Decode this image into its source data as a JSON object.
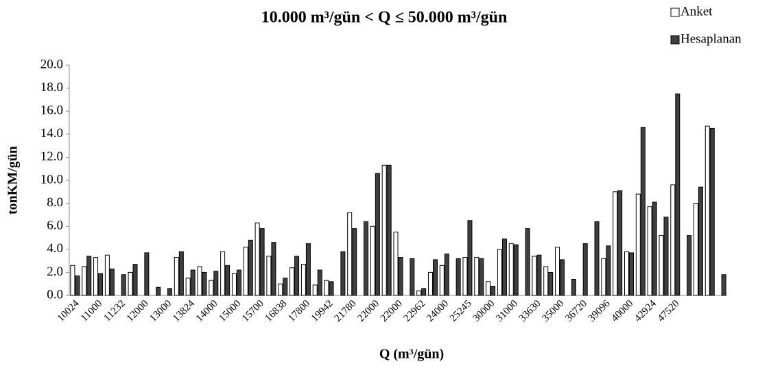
{
  "chart_data": {
    "type": "bar",
    "title": "10.000 m³/gün < Q ≤  50.000 m³/gün",
    "x_label": "Q (m³/gün)",
    "y_label": "tonKM/gün",
    "categories": [
      "10024",
      null,
      "11000",
      null,
      "11232",
      null,
      "12000",
      null,
      "13000",
      null,
      "13824",
      null,
      "14000",
      null,
      "15000",
      null,
      "15700",
      null,
      "16838",
      null,
      "17800",
      null,
      "19942",
      null,
      "21780",
      null,
      "22000",
      null,
      "22000",
      null,
      "22962",
      null,
      "24000",
      null,
      "25245",
      null,
      "30000",
      null,
      "31000",
      null,
      "33630",
      null,
      "35000",
      null,
      "36720",
      null,
      "39096",
      null,
      "40000",
      null,
      "42924",
      null,
      "47520",
      null,
      null,
      null,
      null
    ],
    "series": [
      {
        "name": "Anket",
        "color": "#ffffff",
        "values": [
          2.6,
          2.5,
          3.3,
          3.5,
          null,
          2.0,
          null,
          null,
          null,
          3.3,
          1.5,
          2.5,
          1.3,
          3.8,
          1.9,
          4.2,
          6.3,
          3.4,
          1.0,
          2.4,
          2.7,
          0.9,
          1.3,
          null,
          7.2,
          null,
          6.0,
          11.3,
          5.5,
          null,
          0.4,
          2.0,
          2.6,
          null,
          3.3,
          3.3,
          1.2,
          4.0,
          4.5,
          null,
          3.4,
          2.5,
          4.2,
          null,
          null,
          null,
          3.2,
          9.0,
          3.8,
          8.8,
          7.7,
          5.2,
          9.6,
          null,
          8.0,
          14.7,
          null
        ]
      },
      {
        "name": "Hesaplanan",
        "color": "#404040",
        "values": [
          1.7,
          3.4,
          1.9,
          2.3,
          1.8,
          2.7,
          3.7,
          0.7,
          0.6,
          3.8,
          2.2,
          2.0,
          2.1,
          2.6,
          2.2,
          4.8,
          5.8,
          4.6,
          1.5,
          3.4,
          4.5,
          2.2,
          1.2,
          3.8,
          5.8,
          6.4,
          10.6,
          11.3,
          3.3,
          3.2,
          0.6,
          3.1,
          3.6,
          3.2,
          6.5,
          3.2,
          0.8,
          4.9,
          4.4,
          5.8,
          3.5,
          2.0,
          3.1,
          1.4,
          4.5,
          6.4,
          4.3,
          9.1,
          3.7,
          14.6,
          8.1,
          6.8,
          17.5,
          5.2,
          9.4,
          14.5,
          1.8
        ]
      }
    ],
    "ylim": [
      0,
      20
    ],
    "yticks": [
      {
        "value": 0,
        "label": "0.0"
      },
      {
        "value": 2,
        "label": "2.0"
      },
      {
        "value": 4,
        "label": "4.0"
      },
      {
        "value": 6,
        "label": "6.0"
      },
      {
        "value": 8,
        "label": "8.0"
      },
      {
        "value": 10,
        "label": "10.0"
      },
      {
        "value": 12,
        "label": "12.0"
      },
      {
        "value": 14,
        "label": "14.0"
      },
      {
        "value": 16,
        "label": "16.0"
      },
      {
        "value": 18,
        "label": "18.0"
      },
      {
        "value": 20,
        "label": "20.0"
      }
    ],
    "grid": false,
    "legend": "top-right"
  }
}
